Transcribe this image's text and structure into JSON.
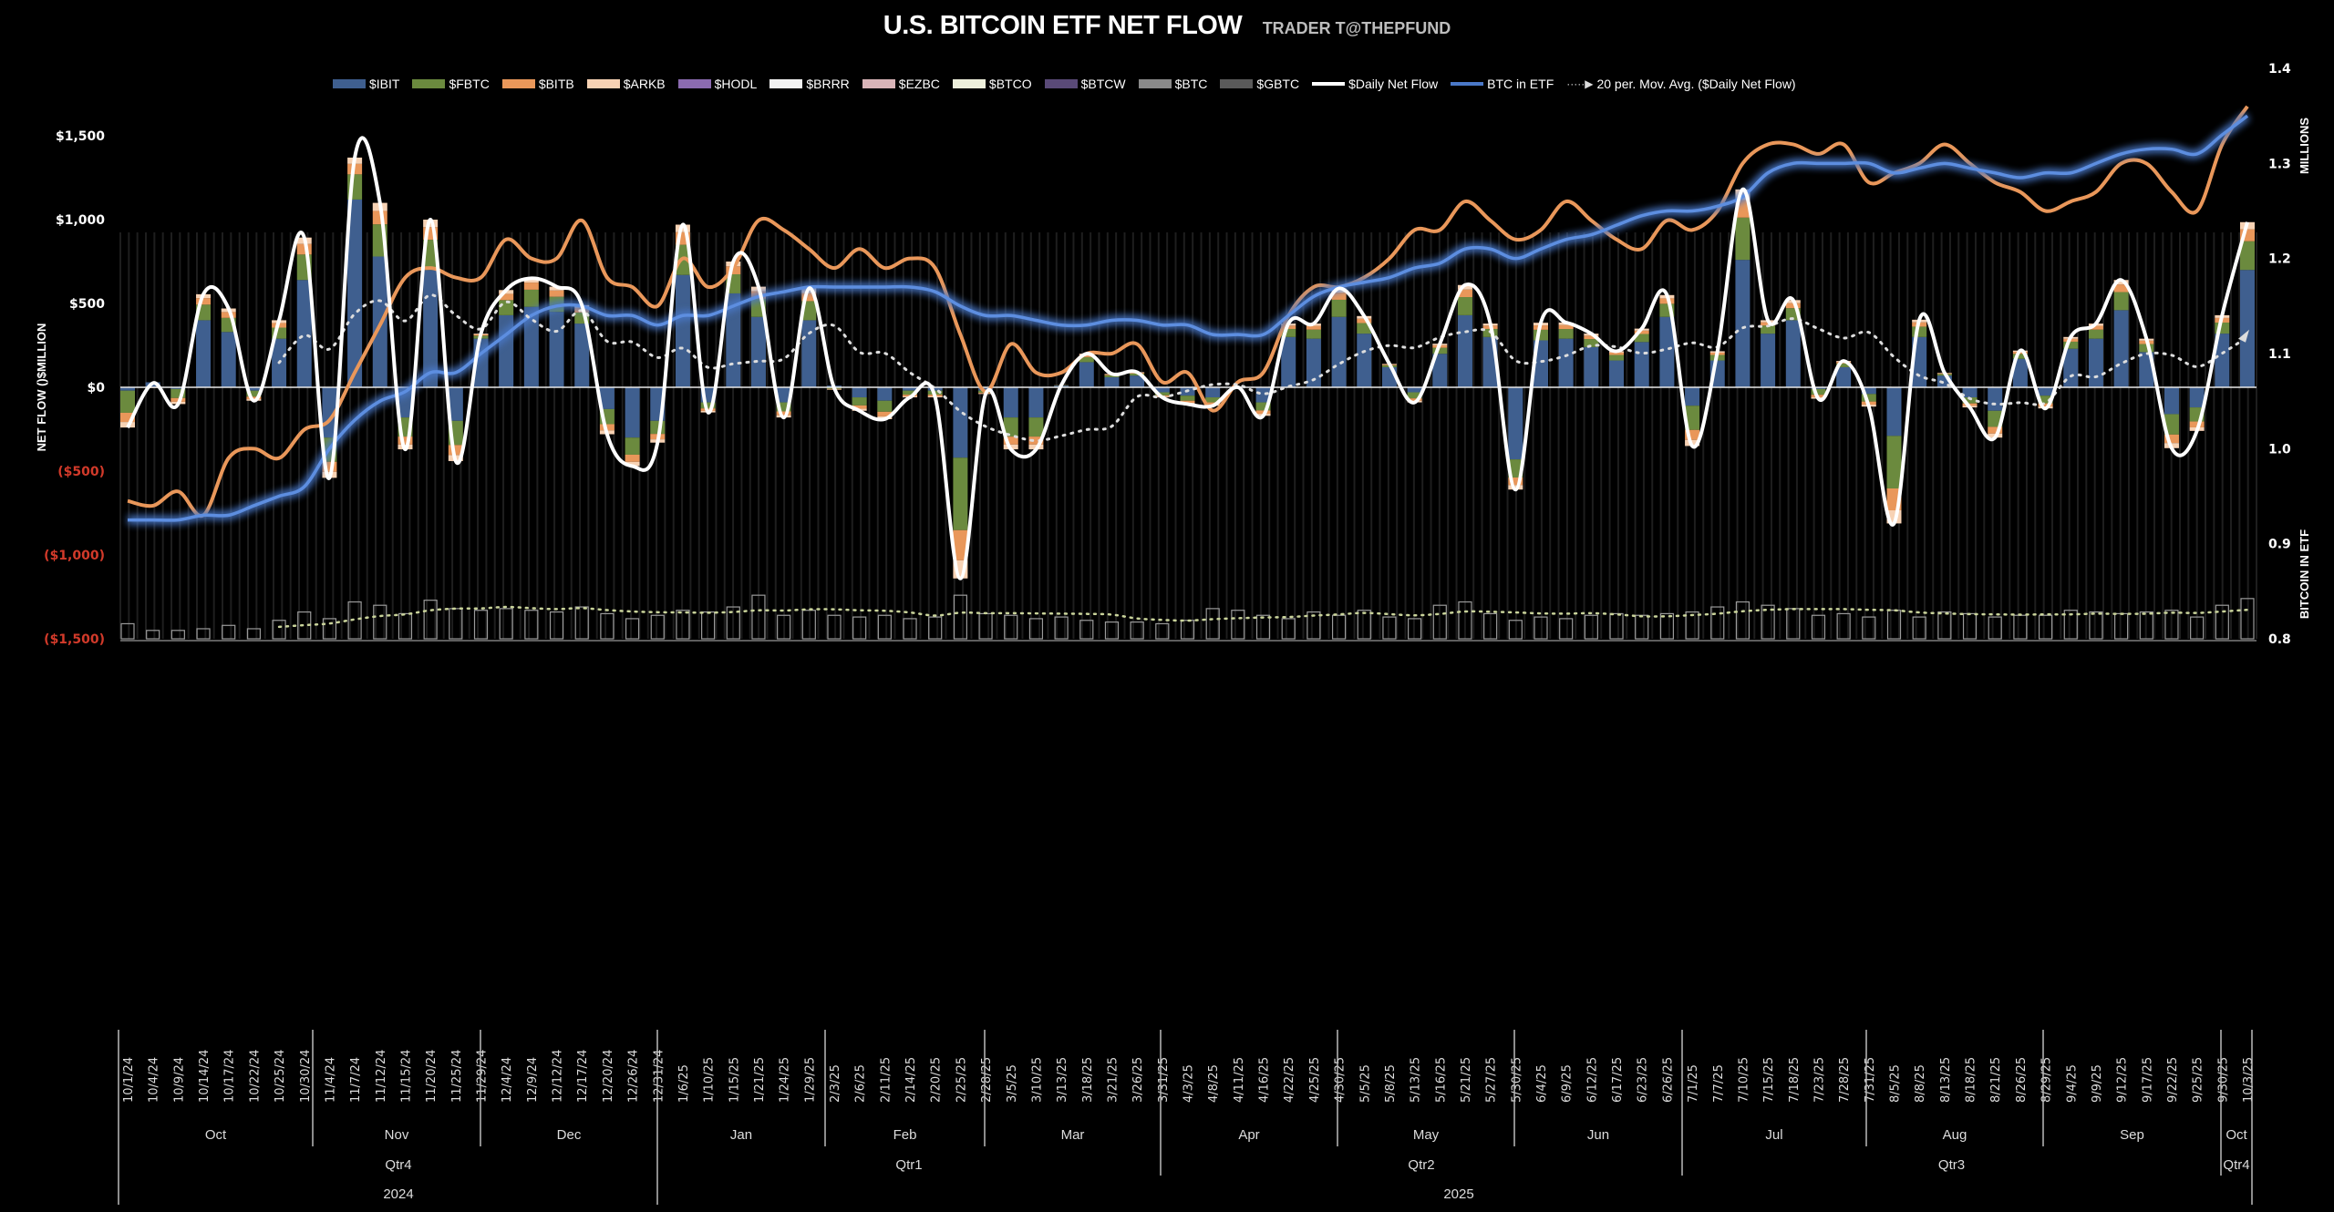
{
  "header": {
    "title": "U.S. BITCOIN ETF NET FLOW",
    "subtitle": "TRADER T@THEPFUND"
  },
  "legend": [
    {
      "label": "$IBIT",
      "color": "#3f5f8f",
      "kind": "bar"
    },
    {
      "label": "$FBTC",
      "color": "#6b8a3e",
      "kind": "bar"
    },
    {
      "label": "$BITB",
      "color": "#e9975a",
      "kind": "bar"
    },
    {
      "label": "$ARKB",
      "color": "#f7d2b4",
      "kind": "bar"
    },
    {
      "label": "$HODL",
      "color": "#8b6bb0",
      "kind": "bar"
    },
    {
      "label": "$BRRR",
      "color": "#f2f2f2",
      "kind": "bar"
    },
    {
      "label": "$EZBC",
      "color": "#d9b4b8",
      "kind": "bar"
    },
    {
      "label": "$BTCO",
      "color": "#eef0dc",
      "kind": "bar"
    },
    {
      "label": "$BTCW",
      "color": "#5a4a78",
      "kind": "bar"
    },
    {
      "label": "$BTC",
      "color": "#8a8a8a",
      "kind": "bar"
    },
    {
      "label": "$GBTC",
      "color": "#5a5a5a",
      "kind": "bar"
    },
    {
      "label": "$Daily Net Flow",
      "color": "#ffffff",
      "kind": "line"
    },
    {
      "label": "BTC in ETF",
      "color": "#4a78c8",
      "kind": "line"
    },
    {
      "label": "20 per. Mov. Avg. ($Daily Net Flow)",
      "color": "#dddddd",
      "kind": "dotted"
    }
  ],
  "chart_data": {
    "type": "bar",
    "title": "U.S. BITCOIN ETF NET FLOW",
    "ylabel": "NET FLOW ()$MILLION",
    "y2label": "BITCOIN IN ETF",
    "y2unit": "MILLIONS",
    "ylim": [
      -1500,
      1500
    ],
    "y2lim": [
      0.8,
      1.4
    ],
    "yticks": [
      "$1,500",
      "$1,000",
      "$500",
      "$0",
      "($500)",
      "($1,000)",
      "($1,500)"
    ],
    "ytick_values": [
      1500,
      1000,
      500,
      0,
      -500,
      -1000,
      -1500
    ],
    "y2ticks": [
      "1.4",
      "1.3",
      "1.2",
      "1.1",
      "1.0",
      "0.9",
      "0.8"
    ],
    "y2tick_values": [
      1.4,
      1.3,
      1.2,
      1.1,
      1.0,
      0.9,
      0.8
    ],
    "grid": false,
    "legend_position": "top",
    "categories": [
      "10/1/24",
      "10/4/24",
      "10/9/24",
      "10/14/24",
      "10/17/24",
      "10/22/24",
      "10/25/24",
      "10/30/24",
      "11/4/24",
      "11/7/24",
      "11/12/24",
      "11/15/24",
      "11/20/24",
      "11/25/24",
      "11/29/24",
      "12/4/24",
      "12/9/24",
      "12/12/24",
      "12/17/24",
      "12/20/24",
      "12/26/24",
      "12/31/24",
      "1/6/25",
      "1/10/25",
      "1/15/25",
      "1/21/25",
      "1/24/25",
      "1/29/25",
      "2/3/25",
      "2/6/25",
      "2/11/25",
      "2/14/25",
      "2/20/25",
      "2/25/25",
      "2/28/25",
      "3/5/25",
      "3/10/25",
      "3/13/25",
      "3/18/25",
      "3/21/25",
      "3/26/25",
      "3/31/25",
      "4/3/25",
      "4/8/25",
      "4/11/25",
      "4/16/25",
      "4/22/25",
      "4/25/25",
      "4/30/25",
      "5/5/25",
      "5/8/25",
      "5/13/25",
      "5/16/25",
      "5/21/25",
      "5/27/25",
      "5/30/25",
      "6/4/25",
      "6/9/25",
      "6/12/25",
      "6/17/25",
      "6/23/25",
      "6/26/25",
      "7/1/25",
      "7/7/25",
      "7/10/25",
      "7/15/25",
      "7/18/25",
      "7/23/25",
      "7/28/25",
      "7/31/25",
      "8/5/25",
      "8/8/25",
      "8/13/25",
      "8/18/25",
      "8/21/25",
      "8/26/25",
      "8/29/25",
      "9/4/25",
      "9/9/25",
      "9/12/25",
      "9/17/25",
      "9/22/25",
      "9/25/25",
      "9/30/25",
      "10/3/25"
    ],
    "months": [
      "Oct",
      "Nov",
      "Dec",
      "Jan",
      "Feb",
      "Mar",
      "Apr",
      "May",
      "Jun",
      "Jul",
      "Aug",
      "Sep",
      "Oct"
    ],
    "quarters": [
      "Qtr4",
      "Qtr1",
      "Qtr2",
      "Qtr3",
      "Qtr4"
    ],
    "years": [
      "2024",
      "2025"
    ],
    "series": [
      {
        "name": "$Daily Net Flow",
        "axis": "left",
        "values": [
          -240,
          25,
          -100,
          555,
          470,
          -80,
          400,
          893,
          -540,
          1370,
          1100,
          -370,
          1000,
          -440,
          320,
          580,
          650,
          600,
          490,
          -280,
          -470,
          -330,
          970,
          -150,
          750,
          600,
          -180,
          590,
          -5,
          -140,
          -190,
          -60,
          -60,
          -1140,
          -40,
          -370,
          -370,
          13,
          200,
          80,
          90,
          -60,
          -100,
          -110,
          0,
          -170,
          380,
          380,
          590,
          425,
          140,
          -90,
          260,
          610,
          380,
          -610,
          385,
          386,
          320,
          215,
          350,
          550,
          -350,
          215,
          1180,
          400,
          520,
          -68,
          157,
          -115,
          -812,
          403,
          86,
          -120,
          -300,
          219,
          -126,
          300,
          380,
          640,
          290,
          -363,
          -260,
          430,
          985
        ]
      },
      {
        "name": "$IBIT",
        "axis": "left",
        "values": [
          -20,
          30,
          -10,
          400,
          330,
          -20,
          290,
          640,
          -300,
          1120,
          780,
          -180,
          700,
          -200,
          290,
          430,
          480,
          450,
          380,
          -130,
          -300,
          -200,
          670,
          -90,
          560,
          420,
          -90,
          400,
          10,
          -60,
          -80,
          -20,
          -20,
          -420,
          -20,
          -180,
          -180,
          10,
          150,
          60,
          70,
          -30,
          -50,
          -60,
          0,
          -90,
          300,
          290,
          420,
          320,
          120,
          -30,
          200,
          430,
          300,
          -430,
          280,
          290,
          240,
          160,
          270,
          420,
          -110,
          160,
          760,
          320,
          400,
          -10,
          120,
          -40,
          -290,
          300,
          70,
          -60,
          -140,
          170,
          -50,
          230,
          290,
          460,
          210,
          -160,
          -120,
          320,
          700
        ]
      },
      {
        "name": "BTC in ETF",
        "axis": "right",
        "values": [
          0.925,
          0.925,
          0.925,
          0.93,
          0.93,
          0.94,
          0.95,
          0.96,
          1.0,
          1.03,
          1.05,
          1.06,
          1.08,
          1.08,
          1.1,
          1.12,
          1.14,
          1.15,
          1.15,
          1.14,
          1.14,
          1.13,
          1.14,
          1.14,
          1.15,
          1.16,
          1.165,
          1.17,
          1.17,
          1.17,
          1.17,
          1.17,
          1.165,
          1.15,
          1.14,
          1.14,
          1.135,
          1.13,
          1.13,
          1.135,
          1.135,
          1.13,
          1.13,
          1.12,
          1.12,
          1.12,
          1.14,
          1.16,
          1.17,
          1.175,
          1.18,
          1.19,
          1.195,
          1.21,
          1.21,
          1.2,
          1.21,
          1.22,
          1.225,
          1.235,
          1.245,
          1.25,
          1.25,
          1.255,
          1.265,
          1.29,
          1.3,
          1.3,
          1.3,
          1.3,
          1.29,
          1.295,
          1.3,
          1.295,
          1.29,
          1.285,
          1.29,
          1.29,
          1.3,
          1.31,
          1.315,
          1.315,
          1.31,
          1.33,
          1.35
        ]
      },
      {
        "axis": "right",
        "color": "#e9975a",
        "values": [
          0.945,
          0.94,
          0.955,
          0.93,
          0.99,
          1.0,
          0.99,
          1.02,
          1.03,
          1.08,
          1.13,
          1.18,
          1.19,
          1.18,
          1.18,
          1.22,
          1.2,
          1.2,
          1.24,
          1.18,
          1.17,
          1.15,
          1.2,
          1.17,
          1.19,
          1.24,
          1.23,
          1.21,
          1.19,
          1.21,
          1.19,
          1.2,
          1.19,
          1.12,
          1.06,
          1.11,
          1.08,
          1.08,
          1.1,
          1.1,
          1.11,
          1.07,
          1.08,
          1.04,
          1.07,
          1.08,
          1.14,
          1.17,
          1.17,
          1.18,
          1.2,
          1.23,
          1.23,
          1.26,
          1.24,
          1.22,
          1.23,
          1.26,
          1.24,
          1.22,
          1.21,
          1.24,
          1.23,
          1.25,
          1.3,
          1.32,
          1.32,
          1.31,
          1.32,
          1.28,
          1.29,
          1.3,
          1.32,
          1.3,
          1.28,
          1.27,
          1.25,
          1.26,
          1.27,
          1.3,
          1.3,
          1.27,
          1.25,
          1.32,
          1.36
        ]
      },
      {
        "axis": "left-bottom",
        "color": "#bbbbbb",
        "values": [
          90,
          50,
          50,
          60,
          80,
          60,
          110,
          160,
          120,
          220,
          200,
          150,
          230,
          180,
          170,
          180,
          170,
          160,
          190,
          150,
          120,
          140,
          170,
          160,
          190,
          260,
          140,
          170,
          140,
          130,
          140,
          120,
          130,
          260,
          150,
          140,
          120,
          130,
          110,
          100,
          100,
          90,
          110,
          180,
          170,
          140,
          120,
          160,
          140,
          170,
          130,
          120,
          200,
          220,
          150,
          110,
          130,
          120,
          140,
          150,
          140,
          150,
          160,
          190,
          220,
          200,
          180,
          140,
          150,
          130,
          170,
          130,
          160,
          150,
          130,
          140,
          140,
          170,
          160,
          150,
          160,
          170,
          130,
          200,
          240
        ]
      }
    ]
  }
}
